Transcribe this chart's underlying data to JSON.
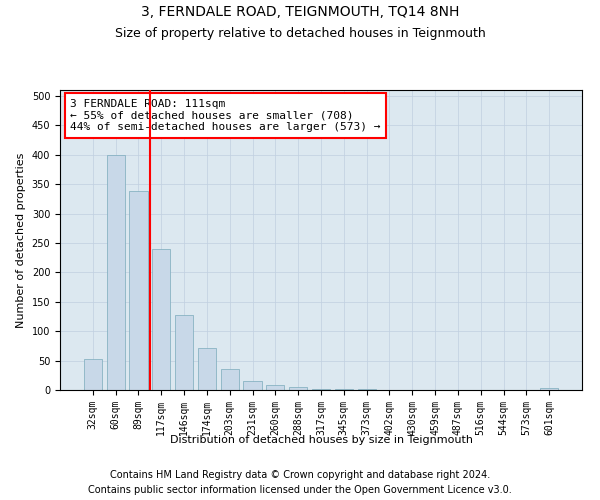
{
  "title": "3, FERNDALE ROAD, TEIGNMOUTH, TQ14 8NH",
  "subtitle": "Size of property relative to detached houses in Teignmouth",
  "xlabel": "Distribution of detached houses by size in Teignmouth",
  "ylabel": "Number of detached properties",
  "categories": [
    "32sqm",
    "60sqm",
    "89sqm",
    "117sqm",
    "146sqm",
    "174sqm",
    "203sqm",
    "231sqm",
    "260sqm",
    "288sqm",
    "317sqm",
    "345sqm",
    "373sqm",
    "402sqm",
    "430sqm",
    "459sqm",
    "487sqm",
    "516sqm",
    "544sqm",
    "573sqm",
    "601sqm"
  ],
  "values": [
    52,
    400,
    338,
    240,
    128,
    72,
    35,
    15,
    8,
    5,
    2,
    1,
    1,
    0,
    0,
    0,
    0,
    0,
    0,
    0,
    4
  ],
  "bar_color": "#c8d8e8",
  "bar_edge_color": "#7aaabb",
  "red_line_x": 2.5,
  "annotation_text": "3 FERNDALE ROAD: 111sqm\n← 55% of detached houses are smaller (708)\n44% of semi-detached houses are larger (573) →",
  "annotation_box_color": "white",
  "annotation_box_edge_color": "red",
  "red_line_color": "red",
  "ylim": [
    0,
    510
  ],
  "yticks": [
    0,
    50,
    100,
    150,
    200,
    250,
    300,
    350,
    400,
    450,
    500
  ],
  "grid_color": "#c0cfe0",
  "background_color": "#dce8f0",
  "footer_line1": "Contains HM Land Registry data © Crown copyright and database right 2024.",
  "footer_line2": "Contains public sector information licensed under the Open Government Licence v3.0.",
  "title_fontsize": 10,
  "subtitle_fontsize": 9,
  "axis_label_fontsize": 8,
  "tick_fontsize": 7,
  "annotation_fontsize": 8,
  "footer_fontsize": 7
}
